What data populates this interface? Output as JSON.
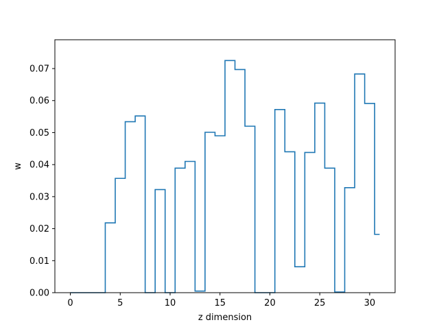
{
  "chart_data": {
    "type": "line",
    "drawstyle": "steps-mid",
    "title": "",
    "xlabel": "z dimension",
    "ylabel": "w",
    "xlim": [
      -1.55,
      32.55
    ],
    "ylim": [
      0.0,
      0.079
    ],
    "xticks": [
      0,
      5,
      10,
      15,
      20,
      25,
      30
    ],
    "yticks": [
      0.0,
      0.01,
      0.02,
      0.03,
      0.04,
      0.05,
      0.06,
      0.07
    ],
    "ytick_labels": [
      "0.00",
      "0.01",
      "0.02",
      "0.03",
      "0.04",
      "0.05",
      "0.06",
      "0.07"
    ],
    "grid": false,
    "series": [
      {
        "color": "#1f77b4",
        "x": [
          0,
          1,
          2,
          3,
          4,
          5,
          6,
          7,
          8,
          9,
          10,
          11,
          12,
          13,
          14,
          15,
          16,
          17,
          18,
          19,
          20,
          21,
          22,
          23,
          24,
          25,
          26,
          27,
          28,
          29,
          30,
          31
        ],
        "values": [
          0.0,
          0.0,
          0.0,
          0.0,
          0.0218,
          0.0357,
          0.0534,
          0.0552,
          0.0,
          0.0322,
          0.0,
          0.0389,
          0.041,
          0.0005,
          0.0501,
          0.049,
          0.0725,
          0.0697,
          0.052,
          0.0,
          0.0,
          0.0572,
          0.044,
          0.0081,
          0.0438,
          0.0592,
          0.0389,
          0.0002,
          0.0328,
          0.0683,
          0.0591,
          0.0182
        ]
      }
    ]
  }
}
